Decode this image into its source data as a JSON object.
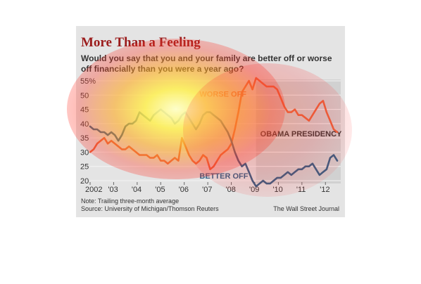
{
  "chart_data": {
    "type": "line",
    "title": "More Than a Feeling",
    "subtitle": "Would you say that you and your family are better off or worse off financially than you were a year ago?",
    "ylim": [
      20,
      55
    ],
    "yticks": [
      "55%",
      "50",
      "45",
      "40",
      "35",
      "30",
      "25",
      "20"
    ],
    "yticks_values": [
      55,
      50,
      45,
      40,
      35,
      30,
      25,
      20
    ],
    "xlim": [
      2002,
      2012.65
    ],
    "xticks": [
      "2002",
      "'03",
      "'04",
      "'05",
      "'06",
      "'07",
      "'08",
      "'09",
      "'10",
      "'11",
      "'12"
    ],
    "xticks_values": [
      2002,
      2003,
      2004,
      2005,
      2006,
      2007,
      2008,
      2009,
      2010,
      2011,
      2012
    ],
    "grid": true,
    "shaded_region": {
      "label": "OBAMA PRESIDENCY",
      "x_start": 2009.05,
      "x_end": 2012.65
    },
    "series": [
      {
        "name": "WORSE OFF",
        "color": "#e8643c",
        "x": [
          2002.0,
          2002.15,
          2002.3,
          2002.45,
          2002.6,
          2002.75,
          2002.9,
          2003.05,
          2003.2,
          2003.35,
          2003.5,
          2003.65,
          2003.8,
          2003.95,
          2004.1,
          2004.25,
          2004.4,
          2004.55,
          2004.7,
          2004.85,
          2005.0,
          2005.15,
          2005.3,
          2005.45,
          2005.6,
          2005.75,
          2005.9,
          2006.05,
          2006.2,
          2006.35,
          2006.5,
          2006.65,
          2006.8,
          2006.95,
          2007.1,
          2007.25,
          2007.4,
          2007.55,
          2007.7,
          2007.85,
          2008.0,
          2008.15,
          2008.3,
          2008.45,
          2008.6,
          2008.75,
          2008.9,
          2009.05,
          2009.2,
          2009.35,
          2009.5,
          2009.65,
          2009.8,
          2009.95,
          2010.1,
          2010.25,
          2010.4,
          2010.55,
          2010.7,
          2010.85,
          2011.0,
          2011.15,
          2011.3,
          2011.45,
          2011.6,
          2011.75,
          2011.9,
          2012.05,
          2012.2,
          2012.35,
          2012.5
        ],
        "values": [
          30,
          31,
          33,
          34,
          35,
          33,
          34,
          33,
          32,
          31,
          31,
          32,
          31,
          30,
          29,
          29,
          29,
          28,
          28,
          29,
          27,
          27,
          26,
          27,
          28,
          27,
          35,
          32,
          29,
          27,
          26,
          27,
          29,
          28,
          24,
          25,
          27,
          29,
          30,
          31,
          33,
          38,
          44,
          51,
          53,
          55,
          52,
          56,
          55,
          54,
          53,
          53,
          53,
          52,
          49,
          46,
          44,
          44,
          45,
          43,
          43,
          42,
          41,
          43,
          45,
          47,
          48,
          44,
          41,
          38,
          37
        ]
      },
      {
        "name": "BETTER OFF",
        "color": "#2f5f86",
        "x": [
          2002.0,
          2002.15,
          2002.3,
          2002.45,
          2002.6,
          2002.75,
          2002.9,
          2003.05,
          2003.2,
          2003.35,
          2003.5,
          2003.65,
          2003.8,
          2003.95,
          2004.1,
          2004.25,
          2004.4,
          2004.55,
          2004.7,
          2004.85,
          2005.0,
          2005.15,
          2005.3,
          2005.45,
          2005.6,
          2005.75,
          2005.9,
          2006.05,
          2006.2,
          2006.35,
          2006.5,
          2006.65,
          2006.8,
          2006.95,
          2007.1,
          2007.25,
          2007.4,
          2007.55,
          2007.7,
          2007.85,
          2008.0,
          2008.15,
          2008.3,
          2008.45,
          2008.6,
          2008.75,
          2008.9,
          2009.05,
          2009.2,
          2009.35,
          2009.5,
          2009.65,
          2009.8,
          2009.95,
          2010.1,
          2010.25,
          2010.4,
          2010.55,
          2010.7,
          2010.85,
          2011.0,
          2011.15,
          2011.3,
          2011.45,
          2011.6,
          2011.75,
          2011.9,
          2012.05,
          2012.2,
          2012.35,
          2012.5
        ],
        "values": [
          39,
          38,
          38,
          37,
          37,
          36,
          37,
          36,
          34,
          36,
          39,
          40,
          40,
          41,
          44,
          43,
          42,
          41,
          43,
          44,
          45,
          44,
          43,
          42,
          40,
          41,
          43,
          44,
          42,
          40,
          38,
          40,
          43,
          44,
          44,
          43,
          42,
          41,
          39,
          37,
          34,
          30,
          27,
          25,
          26,
          23,
          20,
          18,
          19,
          20,
          19,
          19,
          20,
          21,
          21,
          22,
          23,
          22,
          23,
          24,
          24,
          25,
          25,
          26,
          24,
          22,
          23,
          24,
          28,
          29,
          27
        ]
      }
    ],
    "annotations": [
      {
        "text": "WORSE OFF",
        "x": 2006.65,
        "y": 49.5,
        "color": "#e8643c"
      },
      {
        "text": "BETTER OFF",
        "x": 2006.65,
        "y": 20.8,
        "color": "#2f5f86"
      }
    ]
  },
  "footer": {
    "note": "Note: Trailing three-month average",
    "source": "Source: University of Michigan/Thomson Reuters",
    "credit": "The Wall Street Journal"
  }
}
